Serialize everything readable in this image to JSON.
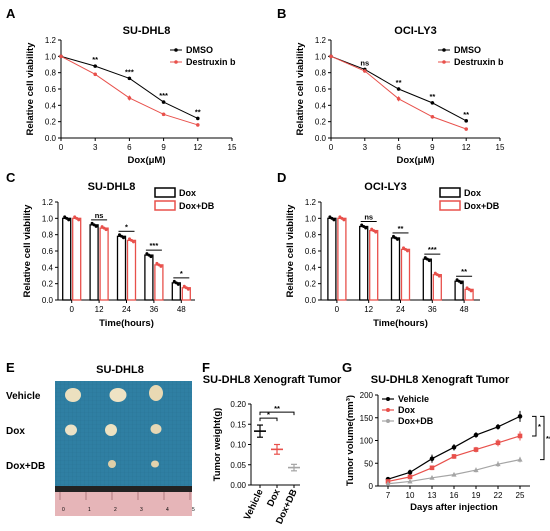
{
  "panels": {
    "A": "A",
    "B": "B",
    "C": "C",
    "D": "D",
    "E": "E",
    "F": "F",
    "G": "G"
  },
  "colors": {
    "black": "#000000",
    "red": "#e8504b",
    "gray": "#a5a5a5",
    "photo_bg": "#2f7fa3"
  },
  "photo": {
    "title": "SU-DHL8",
    "row_labels": [
      "Vehicle",
      "Dox",
      "Dox+DB"
    ],
    "ruler_marks": [
      "0",
      "1",
      "2",
      "3",
      "4",
      "5"
    ]
  },
  "chart_data": [
    {
      "id": "A",
      "type": "line",
      "title": "SU-DHL8",
      "xlabel": "Dox(μM)",
      "ylabel": "Relative cell viability",
      "xlim": [
        0,
        15
      ],
      "ylim": [
        0,
        1.2
      ],
      "xticks": [
        "0",
        "3",
        "6",
        "9",
        "12",
        "15"
      ],
      "yticks": [
        "0.0",
        "0.2",
        "0.4",
        "0.6",
        "0.8",
        "1.0",
        "1.2"
      ],
      "x": [
        0,
        3,
        6,
        9,
        12
      ],
      "series": [
        {
          "name": "DMSO",
          "values": [
            1.0,
            0.88,
            0.73,
            0.44,
            0.24
          ],
          "errors": [
            0.01,
            0.015,
            0.02,
            0.015,
            0.015
          ]
        },
        {
          "name": "Destruxin b",
          "values": [
            1.0,
            0.78,
            0.49,
            0.29,
            0.16
          ],
          "errors": [
            0.01,
            0.02,
            0.03,
            0.015,
            0.015
          ]
        }
      ],
      "significance": [
        "**",
        "***",
        "***",
        "**"
      ],
      "legend": "top-right"
    },
    {
      "id": "B",
      "type": "line",
      "title": "OCI-LY3",
      "xlabel": "Dox(μM)",
      "ylabel": "Relative cell viability",
      "xlim": [
        0,
        15
      ],
      "ylim": [
        0,
        1.2
      ],
      "xticks": [
        "0",
        "3",
        "6",
        "9",
        "12",
        "15"
      ],
      "yticks": [
        "0.0",
        "0.2",
        "0.4",
        "0.6",
        "0.8",
        "1.0",
        "1.2"
      ],
      "x": [
        0,
        3,
        6,
        9,
        12
      ],
      "series": [
        {
          "name": "DMSO",
          "values": [
            1.0,
            0.84,
            0.6,
            0.43,
            0.21
          ],
          "errors": [
            0.01,
            0.015,
            0.02,
            0.02,
            0.015
          ]
        },
        {
          "name": "Destruxin b",
          "values": [
            1.0,
            0.82,
            0.48,
            0.26,
            0.11
          ],
          "errors": [
            0.01,
            0.015,
            0.03,
            0.015,
            0.01
          ]
        }
      ],
      "significance": [
        "ns",
        "**",
        "**",
        "**"
      ],
      "legend": "top-right"
    },
    {
      "id": "C",
      "type": "bar",
      "title": "SU-DHL8",
      "xlabel": "Time(hours)",
      "ylabel": "Relative cell viability",
      "ylim": [
        0,
        1.2
      ],
      "yticks": [
        "0.0",
        "0.2",
        "0.4",
        "0.6",
        "0.8",
        "1.0",
        "1.2"
      ],
      "categories": [
        "0",
        "12",
        "24",
        "36",
        "48"
      ],
      "series": [
        {
          "name": "Dox",
          "values": [
            1.0,
            0.92,
            0.78,
            0.55,
            0.21
          ]
        },
        {
          "name": "Dox+DB",
          "values": [
            1.0,
            0.88,
            0.73,
            0.43,
            0.15
          ]
        }
      ],
      "significance": [
        "",
        "ns",
        "*",
        "***",
        "*"
      ],
      "legend": "top-right"
    },
    {
      "id": "D",
      "type": "bar",
      "title": "OCI-LY3",
      "xlabel": "Time(hours)",
      "ylabel": "Relative cell viability",
      "ylim": [
        0,
        1.2
      ],
      "yticks": [
        "0.0",
        "0.2",
        "0.4",
        "0.6",
        "0.8",
        "1.0",
        "1.2"
      ],
      "categories": [
        "0",
        "12",
        "24",
        "36",
        "48"
      ],
      "series": [
        {
          "name": "Dox",
          "values": [
            1.0,
            0.9,
            0.76,
            0.5,
            0.23
          ]
        },
        {
          "name": "Dox+DB",
          "values": [
            1.0,
            0.85,
            0.62,
            0.31,
            0.13
          ]
        }
      ],
      "significance": [
        "",
        "ns",
        "**",
        "***",
        "**"
      ],
      "legend": "top-right"
    },
    {
      "id": "F",
      "type": "scatter",
      "title": "SU-DHL8 Xenograft Tumor",
      "xlabel": "",
      "ylabel": "Tumor weight(g)",
      "ylim": [
        0,
        0.2
      ],
      "yticks": [
        "0.00",
        "0.05",
        "0.10",
        "0.15",
        "0.20"
      ],
      "categories": [
        "Vehicle",
        "Dox",
        "Dox+DB"
      ],
      "means": [
        0.133,
        0.088,
        0.043
      ],
      "errors": [
        0.015,
        0.012,
        0.008
      ],
      "series_colors": [
        "#000000",
        "#e8504b",
        "#a5a5a5"
      ],
      "significance": [
        "*",
        "**"
      ]
    },
    {
      "id": "G",
      "type": "line",
      "title": "SU-DHL8 Xenograft Tumor",
      "xlabel": "Days after injection",
      "ylabel": "Tumor volume(mm³)",
      "ylim": [
        0,
        200
      ],
      "yticks": [
        "0",
        "50",
        "100",
        "150",
        "200"
      ],
      "x": [
        7,
        10,
        13,
        16,
        19,
        22,
        25
      ],
      "xticks": [
        "7",
        "10",
        "13",
        "16",
        "19",
        "22",
        "25"
      ],
      "series": [
        {
          "name": "Vehicle",
          "values": [
            15,
            30,
            60,
            85,
            112,
            130,
            153
          ],
          "errors": [
            4,
            6,
            9,
            7,
            6,
            6,
            12
          ]
        },
        {
          "name": "Dox",
          "values": [
            10,
            20,
            40,
            65,
            80,
            95,
            110
          ],
          "errors": [
            3,
            4,
            5,
            5,
            6,
            8,
            10
          ]
        },
        {
          "name": "Dox+DB",
          "values": [
            5,
            10,
            18,
            25,
            35,
            48,
            58
          ],
          "errors": [
            2,
            3,
            4,
            4,
            5,
            6,
            6
          ]
        }
      ],
      "significance": [
        "*",
        "**"
      ],
      "legend": "top-left"
    }
  ]
}
